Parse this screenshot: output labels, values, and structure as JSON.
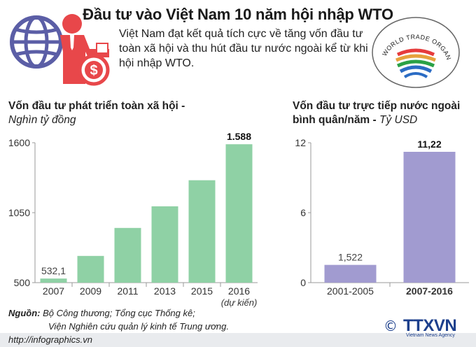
{
  "title": "Đầu tư vào Việt Nam 10 năm hội nhập WTO",
  "intro": "Việt Nam đạt kết quả tích cực về tăng vốn đầu tư toàn xã hội và thu hút đầu tư nước ngoài kể từ khi hội nhập WTO.",
  "logo_text": "WORLD TRADE ORGANIZATION",
  "icons": {
    "header": "globe-businessman-dollar-icon",
    "logo": "wto-logo-icon"
  },
  "colors": {
    "left_bars": "#8fd1a5",
    "right_bars": "#a19bd0",
    "axis": "#9a9a9a",
    "brand": "#1c3f8c"
  },
  "source": {
    "label": "Nguồn:",
    "line1": "Bộ Công thương; Tổng cục Thống kê;",
    "line2": "Viện Nghiên cứu quản lý kinh tế Trung ương."
  },
  "footer": {
    "url": "http://infographics.vn",
    "brand": "TTXVN",
    "brand_sub": "Vietnam News Agency",
    "copyright": "©"
  },
  "chart_data": [
    {
      "type": "bar",
      "title": "Vốn đầu tư phát triển toàn xã hội -",
      "subtitle": "Nghìn tỷ đồng",
      "categories": [
        "2007",
        "2009",
        "2011",
        "2013",
        "2015",
        "2016"
      ],
      "category_note": {
        "index": 5,
        "text": "(dự kiến)"
      },
      "values": [
        532.1,
        710,
        930,
        1100,
        1305,
        1588
      ],
      "data_labels": [
        {
          "index": 0,
          "text": "532,1"
        },
        {
          "index": 5,
          "text": "1.588"
        }
      ],
      "yticks": [
        500,
        1050,
        1600
      ],
      "ytick_labels": [
        "500",
        "1050",
        "1600"
      ],
      "ylim": [
        500,
        1600
      ],
      "grid": false
    },
    {
      "type": "bar",
      "title": "Vốn đầu tư trực tiếp nước ngoài",
      "title_line2": "bình quân/năm -",
      "subtitle": "Tỷ USD",
      "categories": [
        "2001-2005",
        "2007-2016"
      ],
      "values": [
        1.522,
        11.22
      ],
      "data_labels": [
        {
          "index": 0,
          "text": "1,522"
        },
        {
          "index": 1,
          "text": "11,22"
        }
      ],
      "bold_category": 1,
      "yticks": [
        0,
        6,
        12
      ],
      "ytick_labels": [
        "0",
        "6",
        "12"
      ],
      "ylim": [
        0,
        12
      ],
      "grid": false
    }
  ]
}
